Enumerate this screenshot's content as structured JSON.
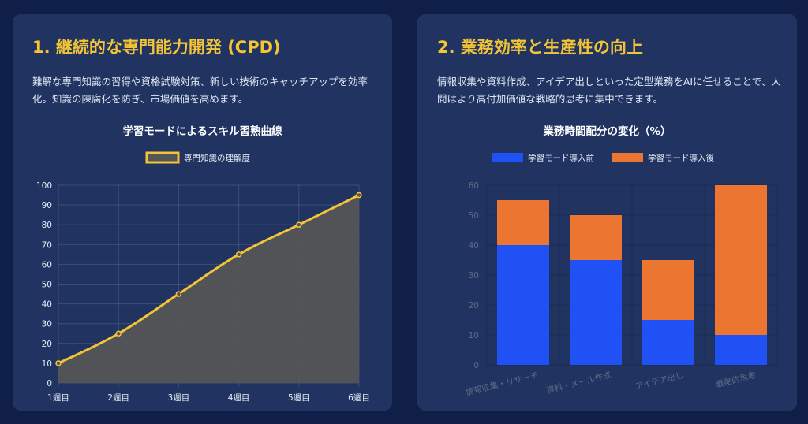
{
  "cards": [
    {
      "title": "1. 継続的な専門能力開発 (CPD)",
      "description": "難解な専門知識の習得や資格試験対策、新しい技術のキャッチアップを効率化。知識の陳腐化を防ぎ、市場価値を高めます。"
    },
    {
      "title": "2. 業務効率と生産性の向上",
      "description": "情報収集や資料作成、アイデア出しといった定型業務をAIに任せることで、人間はより高付加価値な戦略的思考に集中できます。"
    }
  ],
  "colors": {
    "accent": "#f3c435",
    "before": "#1f51f5",
    "after": "#ec7532",
    "area": "#545556"
  },
  "chart_data": [
    {
      "type": "line",
      "title": "学習モードによるスキル習熟曲線",
      "categories": [
        "1週目",
        "2週目",
        "3週目",
        "4週目",
        "5週目",
        "6週目"
      ],
      "series": [
        {
          "name": "専門知識の理解度",
          "values": [
            10,
            25,
            45,
            65,
            80,
            95
          ]
        }
      ],
      "ylim": [
        0,
        100
      ],
      "yticks": [
        0,
        10,
        20,
        30,
        40,
        50,
        60,
        70,
        80,
        90,
        100
      ],
      "grid": true,
      "legend": "top-center",
      "xlabel": "",
      "ylabel": ""
    },
    {
      "type": "bar",
      "stacked": true,
      "title": "業務時間配分の変化（%）",
      "categories": [
        "情報収集・リサーチ",
        "資料・メール作成",
        "アイデア出し",
        "戦略的思考"
      ],
      "series": [
        {
          "name": "学習モード導入前",
          "values": [
            40,
            35,
            15,
            10
          ]
        },
        {
          "name": "学習モード導入後",
          "values": [
            15,
            15,
            20,
            50
          ]
        }
      ],
      "ylim": [
        0,
        60
      ],
      "yticks": [
        0,
        10,
        20,
        30,
        40,
        50,
        60
      ],
      "grid": true,
      "legend": "top-center",
      "xlabel": "",
      "ylabel": ""
    }
  ]
}
